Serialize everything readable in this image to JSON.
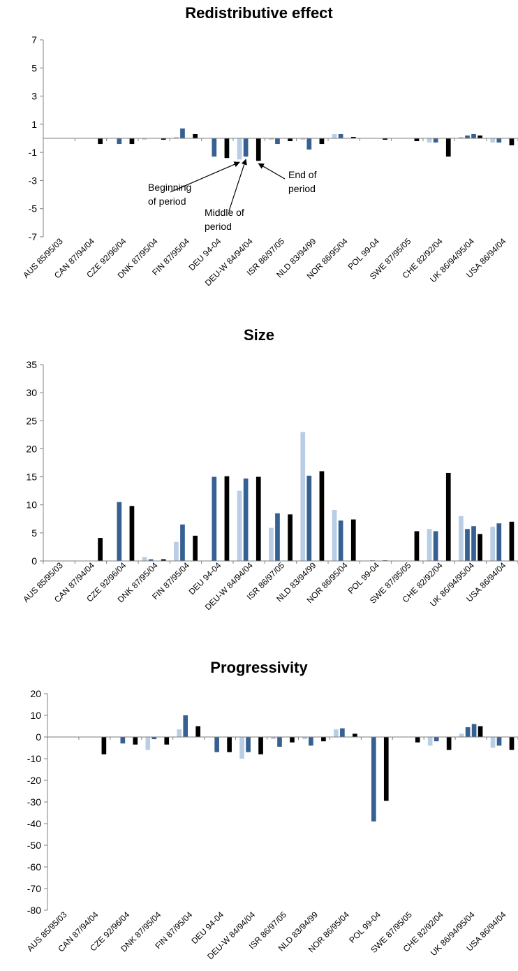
{
  "chart_data": [
    {
      "type": "bar",
      "title": "Redistributive effect",
      "xlabel": "",
      "ylabel": "",
      "ylim": [
        -7,
        7
      ],
      "yticks": [
        7,
        5,
        3,
        1,
        -1,
        -3,
        -5,
        -7
      ],
      "grid": false,
      "legend": "none",
      "categories": [
        "AUS 85/95/03",
        "CAN 87/94/04",
        "CZE 92/96/04",
        "DNK 87/95/04",
        "FIN 87/95/04",
        "DEU 94-04",
        "DEU-W 84/94/04",
        "ISR 86/97/05",
        "NLD 83/94/99",
        "NOR 86/95/04",
        "POL 99-04",
        "SWE 87/95/05",
        "CHE 82/92/04",
        "UK 86/94/95/04",
        "USA 86/94/04"
      ],
      "series": [
        {
          "color": "#b9cde5",
          "values": [
            0,
            0,
            0,
            -0.1,
            0.1,
            0,
            -1.5,
            -0.1,
            -0.1,
            0.3,
            0,
            0,
            -0.3,
            0.1,
            -0.3
          ]
        },
        {
          "color": "#376092",
          "values": [
            0,
            0,
            -0.4,
            0,
            0.7,
            -1.3,
            -1.3,
            -0.4,
            -0.8,
            0.3,
            0,
            0,
            -0.3,
            0.2,
            -0.3
          ]
        },
        {
          "color": "#376092",
          "values": [
            null,
            null,
            null,
            null,
            null,
            null,
            null,
            null,
            null,
            null,
            null,
            null,
            null,
            0.3,
            null
          ]
        },
        {
          "color": "#000000",
          "values": [
            0,
            -0.4,
            -0.4,
            -0.1,
            0.3,
            -1.4,
            -1.6,
            -0.2,
            -0.4,
            0.1,
            -0.1,
            -0.2,
            -1.3,
            0.2,
            -0.5
          ]
        }
      ],
      "annotations": [
        {
          "lines": [
            "Beginning",
            "of period"
          ],
          "category": "DEU-W 84/94/04",
          "series": 0
        },
        {
          "lines": [
            "Middle of",
            "period"
          ],
          "category": "DEU-W 84/94/04",
          "series": 1
        },
        {
          "lines": [
            "End of",
            "period"
          ],
          "category": "DEU-W 84/94/04",
          "series": 3
        }
      ]
    },
    {
      "type": "bar",
      "title": "Size",
      "xlabel": "",
      "ylabel": "",
      "ylim": [
        0,
        35
      ],
      "yticks": [
        35,
        30,
        25,
        20,
        15,
        10,
        5,
        0
      ],
      "grid": false,
      "legend": "none",
      "categories": [
        "AUS 85/95/03",
        "CAN 87/94/04",
        "CZE 92/96/04",
        "DNK 87/95/04",
        "FIN 87/95/04",
        "DEU 94-04",
        "DEU-W 84/94/04",
        "ISR 86/97/05",
        "NLD 83/94/99",
        "NOR 86/95/04",
        "POL 99-04",
        "SWE 87/95/05",
        "CHE 82/92/04",
        "UK 86/94/95/04",
        "USA 86/94/04"
      ],
      "series": [
        {
          "color": "#b9cde5",
          "values": [
            0,
            0,
            0,
            0.7,
            3.4,
            0,
            12.5,
            5.9,
            23,
            9.1,
            0,
            0,
            5.7,
            8,
            6.1
          ]
        },
        {
          "color": "#376092",
          "values": [
            0,
            0,
            10.5,
            0.3,
            6.5,
            15,
            14.7,
            8.5,
            15.2,
            7.2,
            0.1,
            0,
            5.3,
            5.7,
            6.7
          ]
        },
        {
          "color": "#376092",
          "values": [
            null,
            null,
            null,
            null,
            null,
            null,
            null,
            null,
            null,
            null,
            null,
            null,
            null,
            6.2,
            null
          ]
        },
        {
          "color": "#000000",
          "values": [
            0,
            4.1,
            9.8,
            0.3,
            4.5,
            15.1,
            15,
            8.3,
            16,
            7.4,
            0.1,
            5.3,
            15.7,
            4.8,
            7
          ]
        }
      ]
    },
    {
      "type": "bar",
      "title": "Progressivity",
      "xlabel": "",
      "ylabel": "",
      "ylim": [
        -80,
        20
      ],
      "yticks": [
        20,
        10,
        0,
        -10,
        -20,
        -30,
        -40,
        -50,
        -60,
        -70,
        -80
      ],
      "grid": false,
      "legend": "none",
      "categories": [
        "AUS 85/95/03",
        "CAN 87/94/04",
        "CZE 92/96/04",
        "DNK 87/95/04",
        "FIN 87/95/04",
        "DEU 94-04",
        "DEU-W 84/94/04",
        "ISR 86/97/05",
        "NLD 83/94/99",
        "NOR 86/95/04",
        "POL 99-04",
        "SWE 87/95/05",
        "CHE 82/92/04",
        "UK 86/94/95/04",
        "USA 86/94/04"
      ],
      "series": [
        {
          "color": "#b9cde5",
          "values": [
            0,
            0,
            0,
            -6,
            3.5,
            0,
            -10,
            -1,
            -1,
            3.5,
            0,
            0,
            -4,
            1.5,
            -5
          ]
        },
        {
          "color": "#376092",
          "values": [
            0,
            0,
            -3,
            -1,
            10,
            -7,
            -7,
            -4.5,
            -4,
            4,
            -39,
            0,
            -2,
            4.5,
            -4
          ]
        },
        {
          "color": "#376092",
          "values": [
            null,
            null,
            null,
            null,
            null,
            null,
            null,
            null,
            null,
            null,
            null,
            null,
            null,
            6,
            null
          ]
        },
        {
          "color": "#000000",
          "values": [
            0,
            -8,
            -3.5,
            -3.5,
            5,
            -7,
            -8,
            -2.5,
            -2,
            1.5,
            -29.5,
            -2.5,
            -6,
            5,
            -6
          ]
        }
      ]
    }
  ]
}
